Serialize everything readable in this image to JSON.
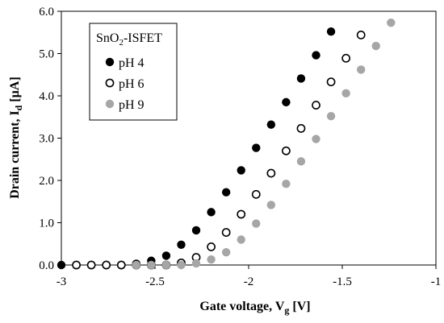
{
  "chart_data": {
    "type": "scatter",
    "xlabel": {
      "main": "Gate voltage, V",
      "sub": "g",
      "tail": " [V]"
    },
    "ylabel": {
      "main": "Drain current, I",
      "sub": "d",
      "tail": " [µA]"
    },
    "xlim": [
      -3,
      -1
    ],
    "ylim": [
      0,
      6
    ],
    "x_ticks": [
      -3,
      -2.5,
      -2,
      -1.5,
      -1
    ],
    "x_tick_labels": [
      "-3",
      "-2.5",
      "-2",
      "-1.5",
      "-1"
    ],
    "y_ticks": [
      0,
      1,
      2,
      3,
      4,
      5,
      6
    ],
    "y_tick_labels": [
      "0.0",
      "1.0",
      "2.0",
      "3.0",
      "4.0",
      "5.0",
      "6.0"
    ],
    "grid": false,
    "legend": {
      "placement": "top-left",
      "title_main": "SnO",
      "title_sub": "2",
      "title_tail": "-ISFET"
    },
    "series": [
      {
        "name": "pH 4",
        "marker": "filled",
        "color": "#000000",
        "x": [
          -3.0,
          -2.92,
          -2.84,
          -2.76,
          -2.68,
          -2.6,
          -2.52,
          -2.44,
          -2.36,
          -2.28,
          -2.2,
          -2.12,
          -2.04,
          -1.96,
          -1.88,
          -1.8,
          -1.72,
          -1.64,
          -1.56
        ],
        "y": [
          0.0,
          0.0,
          0.0,
          0.0,
          0.0,
          0.03,
          0.1,
          0.22,
          0.48,
          0.82,
          1.25,
          1.72,
          2.24,
          2.77,
          3.32,
          3.85,
          4.41,
          4.96,
          5.52
        ]
      },
      {
        "name": "pH 6",
        "marker": "open",
        "color": "#000000",
        "x": [
          -2.92,
          -2.84,
          -2.76,
          -2.68,
          -2.6,
          -2.52,
          -2.44,
          -2.36,
          -2.28,
          -2.2,
          -2.12,
          -2.04,
          -1.96,
          -1.88,
          -1.8,
          -1.72,
          -1.64,
          -1.56,
          -1.48,
          -1.4
        ],
        "y": [
          0.0,
          0.0,
          0.0,
          0.0,
          0.0,
          0.0,
          0.0,
          0.05,
          0.18,
          0.43,
          0.77,
          1.2,
          1.67,
          2.17,
          2.7,
          3.23,
          3.78,
          4.33,
          4.89,
          5.44
        ]
      },
      {
        "name": "pH 9",
        "marker": "filled",
        "color": "#a6a6a6",
        "x": [
          -2.6,
          -2.52,
          -2.44,
          -2.36,
          -2.28,
          -2.2,
          -2.12,
          -2.04,
          -1.96,
          -1.88,
          -1.8,
          -1.72,
          -1.64,
          -1.56,
          -1.48,
          -1.4,
          -1.32,
          -1.24
        ],
        "y": [
          0.0,
          0.0,
          0.0,
          0.0,
          0.04,
          0.13,
          0.3,
          0.6,
          0.98,
          1.42,
          1.92,
          2.45,
          2.98,
          3.52,
          4.06,
          4.62,
          5.18,
          5.73
        ]
      }
    ]
  }
}
